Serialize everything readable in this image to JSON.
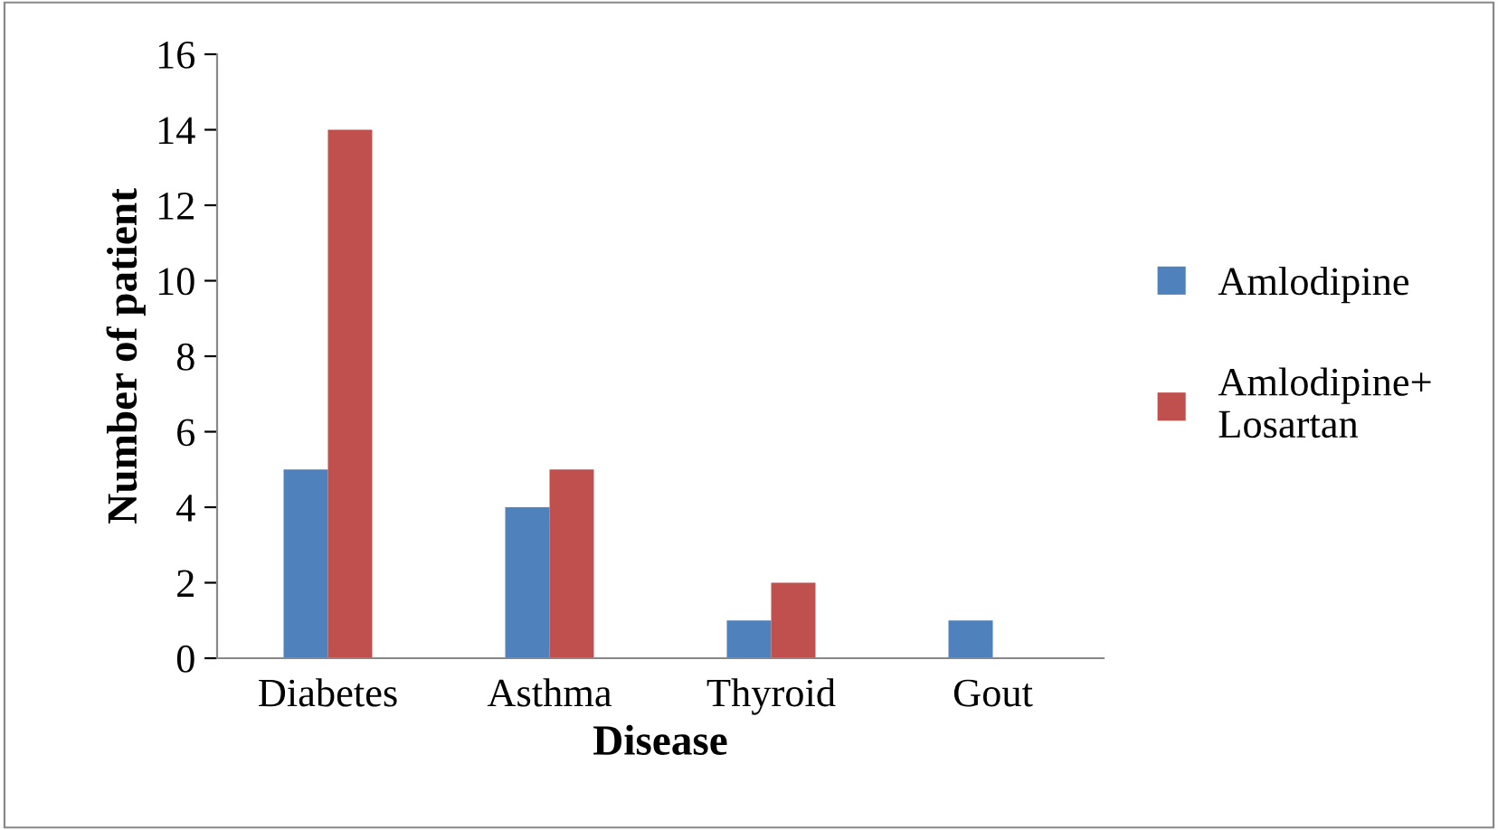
{
  "chart_data": {
    "type": "bar",
    "xlabel": "Disease",
    "ylabel": "Number of patient",
    "categories": [
      "Diabetes",
      "Asthma",
      "Thyroid",
      "Gout"
    ],
    "series": [
      {
        "name": "Amlodipine",
        "color": "#4f81bd",
        "values": [
          5,
          4,
          1,
          1
        ]
      },
      {
        "name": "Amlodipine+\nLosartan",
        "color": "#c0504d",
        "values": [
          14,
          5,
          2,
          0
        ]
      }
    ],
    "ylim": [
      0,
      16
    ],
    "yticks": [
      0,
      2,
      4,
      6,
      8,
      10,
      12,
      14,
      16
    ],
    "grid": false,
    "legend": "right"
  }
}
